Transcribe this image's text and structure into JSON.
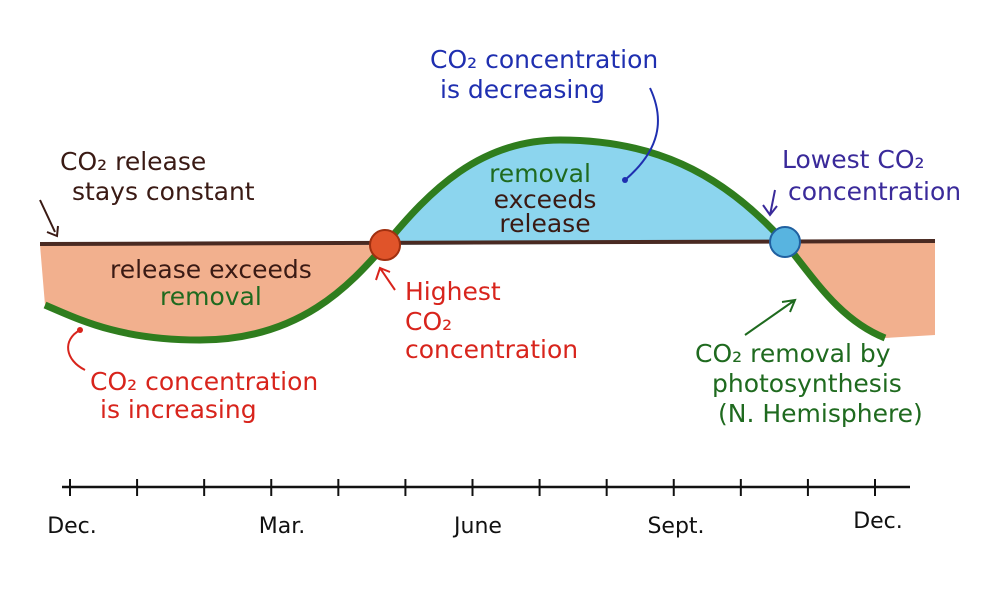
{
  "colors": {
    "release_line": "#4a2a22",
    "removal_curve": "#2f7d1e",
    "excess_release_fill": "#f0a27a",
    "excess_removal_fill": "#7fd0ec",
    "highest_marker": "#e0542a",
    "lowest_marker": "#58b4e0",
    "red_text": "#d8241c",
    "blue_text": "#1f2fb0",
    "green_text": "#1f6a1f",
    "dark_text": "#3a1a14",
    "purple_text": "#3a2a9a"
  },
  "annotations": {
    "release_constant": [
      "CO₂ release",
      "stays constant"
    ],
    "release_exceeds": [
      "release exceeds",
      "removal"
    ],
    "removal_exceeds": [
      "removal",
      "exceeds",
      "release"
    ],
    "decreasing": [
      "CO₂ concentration",
      "is decreasing"
    ],
    "increasing": [
      "CO₂ concentration",
      "is increasing"
    ],
    "highest": [
      "Highest",
      "CO₂",
      "concentration"
    ],
    "lowest": [
      "Lowest CO₂",
      "concentration"
    ],
    "photosynthesis": [
      "CO₂ removal by",
      "photosynthesis",
      "(N. Hemisphere)"
    ]
  },
  "timeline": {
    "labels": [
      "Dec.",
      "Mar.",
      "June",
      "Sept.",
      "Dec."
    ],
    "tick_count": 13
  }
}
